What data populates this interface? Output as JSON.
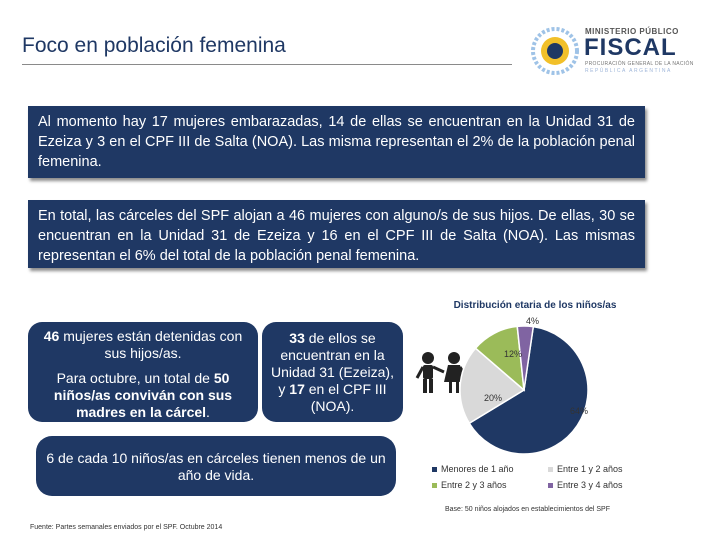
{
  "header": {
    "title": "Foco en población femenina",
    "logo": {
      "ministerio": "MINISTERIO PÚBLICO",
      "fiscal": "FISCAL",
      "subtitle": "PROCURACIÓN GENERAL DE LA NACIÓN",
      "republica": "REPÚBLICA ARGENTINA"
    }
  },
  "box1": {
    "text": "Al momento hay 17 mujeres embarazadas, 14 de ellas se encuentran en la Unidad 31 de Ezeiza y 3 en el CPF III de Salta (NOA). Las misma representan el 2% de la población penal femenina."
  },
  "box2": {
    "text": "En total, las cárceles del SPF alojan a 46 mujeres con alguno/s de sus hijos. De ellas, 30 se encuentran en la Unidad 31 de Ezeiza y 16 en el CPF III de Salta (NOA). Las mismas representan el 6% del total de la población penal femenina."
  },
  "panel1": {
    "num1": "46",
    "line1": " mujeres están detenidas con sus hijos/as.",
    "pre2": "Para octubre, un total de ",
    "num2": "50",
    "bold2": " niños/as conviván con sus madres en la cárcel",
    "end2": "."
  },
  "panel2": {
    "num1": "33",
    "text1": " de ellos se encuentran en la Unidad 31 (Ezeiza), y ",
    "num2": "17",
    "text2": " en el CPF III (NOA)."
  },
  "panel3": {
    "text": "6 de cada 10 niños/as en cárceles tienen menos de un año de vida."
  },
  "chart_data": {
    "type": "pie",
    "title": "Distribución etaria de los niños/as",
    "categories": [
      "Menores de 1 año",
      "Entre 1 y 2 años",
      "Entre 2 y 3 años",
      "Entre 3 y 4 años"
    ],
    "values": [
      64,
      20,
      12,
      4
    ],
    "value_labels": [
      "64%",
      "20%",
      "12%",
      "4%"
    ],
    "colors": [
      "#1f3864",
      "#d9d9d9",
      "#9bbb59",
      "#8064a2"
    ]
  },
  "base_note": "Base: 50 niños alojados en establecimientos del SPF",
  "source": "Fuente: Partes semanales enviados por el SPF. Octubre 2014"
}
